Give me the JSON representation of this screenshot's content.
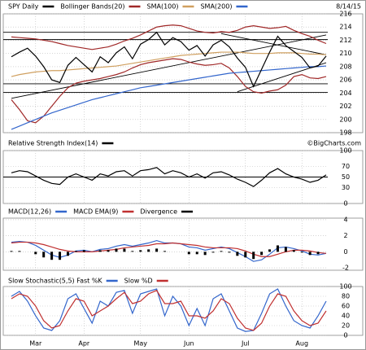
{
  "chart_data": [
    {
      "type": "line",
      "title": "SPY Daily",
      "date": "8/14/15",
      "color": "#000000",
      "values": [
        209.5,
        210.2,
        210.8,
        209.6,
        208,
        206,
        205.6,
        208.2,
        209.4,
        208.3,
        207.2,
        209.5,
        208.6,
        210.1,
        211,
        209.2,
        211.4,
        212.1,
        213.2,
        211.3,
        212.4,
        211.8,
        210.5,
        211.2,
        209.6,
        211.3,
        212,
        211,
        209.3,
        207.9,
        205,
        207.6,
        210.2,
        212.6,
        211.2,
        210.3,
        209.4,
        207.8,
        208.1,
        209.6
      ],
      "series": [
        {
          "name": "Bollinger Bands(20)",
          "color": "#a02828",
          "values": [
            212.5,
            212.4,
            212.3,
            212.2,
            212,
            211.8,
            211.5,
            211.2,
            211,
            210.8,
            210.6,
            210.8,
            211,
            211.4,
            211.9,
            212.3,
            212.8,
            213.4,
            214,
            214.2,
            214.3,
            214.2,
            213.8,
            213.4,
            213.2,
            213.1,
            213.3,
            213.2,
            213.5,
            214,
            214.2,
            214,
            213.8,
            213.9,
            214.1,
            213.5,
            213,
            212.6,
            212,
            211.5
          ],
          "lower": [
            203,
            201.5,
            199.8,
            199.5,
            200.5,
            202,
            203.5,
            204.8,
            205.5,
            205.8,
            206,
            206.2,
            206.5,
            206.8,
            207.2,
            207.8,
            208.3,
            208.6,
            208.8,
            209,
            209.2,
            209.1,
            208.7,
            208.4,
            208.2,
            208.3,
            208.5,
            207.8,
            206.5,
            205,
            204.2,
            204,
            204.3,
            204.5,
            205.2,
            206.5,
            206.8,
            206.3,
            206.2,
            206.5
          ]
        },
        {
          "name": "SMA(100)",
          "color": "#d0a060",
          "values": [
            206.5,
            206.8,
            207,
            207.2,
            207.3,
            207.4,
            207.4,
            207.5,
            207.6,
            207.7,
            207.8,
            207.9,
            208,
            208.1,
            208.3,
            208.5,
            208.7,
            208.9,
            209.1,
            209.3,
            209.5,
            209.7,
            209.8,
            209.9,
            210,
            210.1,
            210.2,
            210.2,
            210.2,
            210.1,
            210,
            210,
            210,
            210.1,
            210.1,
            210.1,
            210,
            209.9,
            209.9,
            209.8
          ]
        },
        {
          "name": "SMA(200)",
          "color": "#3366cc",
          "values": [
            198.5,
            199,
            199.5,
            200,
            200.5,
            201,
            201.4,
            201.8,
            202.2,
            202.6,
            203,
            203.3,
            203.6,
            203.9,
            204.2,
            204.5,
            204.8,
            205,
            205.2,
            205.4,
            205.6,
            205.8,
            206,
            206.2,
            206.4,
            206.6,
            206.8,
            207,
            207.1,
            207.2,
            207.3,
            207.4,
            207.5,
            207.6,
            207.7,
            207.8,
            207.9,
            208,
            208,
            208.1
          ]
        }
      ],
      "hlines": [
        213.2,
        212.1,
        205.4,
        204.1
      ],
      "trend_lines": [
        {
          "x": [
            0,
            39
          ],
          "y": [
            203.2,
            212.8
          ]
        },
        {
          "x": [
            28,
            39
          ],
          "y": [
            204.2,
            208.6
          ]
        },
        {
          "x": [
            26,
            39
          ],
          "y": [
            213,
            209.8
          ]
        }
      ],
      "ylim": [
        198,
        216
      ],
      "yticks": [
        198,
        200,
        202,
        204,
        206,
        208,
        210,
        212,
        214,
        216
      ],
      "grid": true
    },
    {
      "type": "line",
      "credit": "©BigCharts.com",
      "series": [
        {
          "name": "Relative Strength Index(14)",
          "color": "#000000",
          "values": [
            58,
            62,
            60,
            52,
            44,
            38,
            36,
            50,
            56,
            50,
            44,
            56,
            52,
            60,
            62,
            52,
            62,
            64,
            68,
            56,
            62,
            58,
            50,
            56,
            48,
            58,
            60,
            54,
            46,
            40,
            32,
            44,
            58,
            66,
            56,
            50,
            46,
            40,
            44,
            54
          ]
        }
      ],
      "hlines": [
        50
      ],
      "ylim": [
        0,
        100
      ],
      "yticks": [
        0,
        30,
        50,
        70,
        100
      ],
      "grid": true
    },
    {
      "type": "line",
      "series": [
        {
          "name": "MACD(12,26)",
          "color": "#3366cc",
          "values": [
            1.2,
            1.3,
            1.2,
            0.8,
            0.2,
            -0.4,
            -0.7,
            -0.4,
            0.1,
            0.2,
            0,
            0.3,
            0.4,
            0.7,
            0.9,
            0.7,
            0.9,
            1.1,
            1.4,
            1.1,
            1.1,
            1,
            0.6,
            0.5,
            0.2,
            0.4,
            0.6,
            0.4,
            -0.1,
            -0.6,
            -1.2,
            -1,
            -0.3,
            0.5,
            0.6,
            0.4,
            0.1,
            -0.3,
            -0.4,
            -0.2
          ]
        },
        {
          "name": "MACD EMA(9)",
          "color": "#c03030",
          "values": [
            1.1,
            1.2,
            1.2,
            1.1,
            0.9,
            0.6,
            0.3,
            0.1,
            0,
            0,
            0,
            0.1,
            0.2,
            0.3,
            0.5,
            0.6,
            0.7,
            0.8,
            1,
            1,
            1.1,
            1,
            0.9,
            0.8,
            0.6,
            0.5,
            0.5,
            0.5,
            0.4,
            0.1,
            -0.3,
            -0.6,
            -0.6,
            -0.3,
            0,
            0.2,
            0.2,
            0.1,
            -0.1,
            -0.2
          ]
        },
        {
          "name": "Divergence",
          "color": "#000000",
          "style": "bar",
          "values": [
            0.1,
            0.1,
            0,
            -0.3,
            -0.7,
            -1,
            -1,
            -0.5,
            0.1,
            0.2,
            0,
            0.2,
            0.2,
            0.4,
            0.4,
            0.1,
            0.2,
            0.3,
            0.4,
            0.1,
            0,
            0,
            -0.3,
            -0.3,
            -0.4,
            -0.1,
            0.1,
            -0.1,
            -0.5,
            -0.7,
            -0.9,
            -0.4,
            0.3,
            0.8,
            0.6,
            0.2,
            -0.1,
            -0.4,
            -0.3,
            0
          ]
        }
      ],
      "ylim": [
        -2.3,
        4.2
      ],
      "yticks": [
        -2,
        0,
        2,
        4
      ],
      "grid": true
    },
    {
      "type": "line",
      "categories": [
        null,
        null,
        null,
        "Mar",
        null,
        null,
        null,
        null,
        null,
        "Apr",
        null,
        null,
        null,
        null,
        null,
        null,
        "May",
        null,
        null,
        null,
        null,
        null,
        "Jun",
        null,
        null,
        null,
        null,
        null,
        null,
        "Jul",
        null,
        null,
        null,
        null,
        null,
        null,
        "Aug",
        null,
        null,
        null
      ],
      "series": [
        {
          "name": "Slow Stochastic(5,5) Fast %K",
          "color": "#3366cc",
          "values": [
            80,
            90,
            70,
            40,
            15,
            10,
            30,
            75,
            85,
            55,
            25,
            70,
            60,
            88,
            92,
            45,
            85,
            90,
            95,
            40,
            80,
            60,
            20,
            55,
            20,
            75,
            85,
            50,
            15,
            8,
            10,
            45,
            85,
            95,
            60,
            30,
            20,
            15,
            40,
            70
          ]
        },
        {
          "name": "Slow %D",
          "color": "#c03030",
          "values": [
            75,
            85,
            80,
            60,
            30,
            15,
            20,
            50,
            75,
            70,
            40,
            50,
            60,
            75,
            88,
            65,
            70,
            85,
            92,
            65,
            65,
            70,
            40,
            40,
            35,
            50,
            75,
            65,
            35,
            15,
            10,
            25,
            60,
            85,
            80,
            50,
            30,
            20,
            25,
            50
          ]
        }
      ],
      "ylim": [
        0,
        100
      ],
      "yticks": [
        0,
        20,
        40,
        60,
        80,
        100
      ],
      "grid": true
    }
  ]
}
